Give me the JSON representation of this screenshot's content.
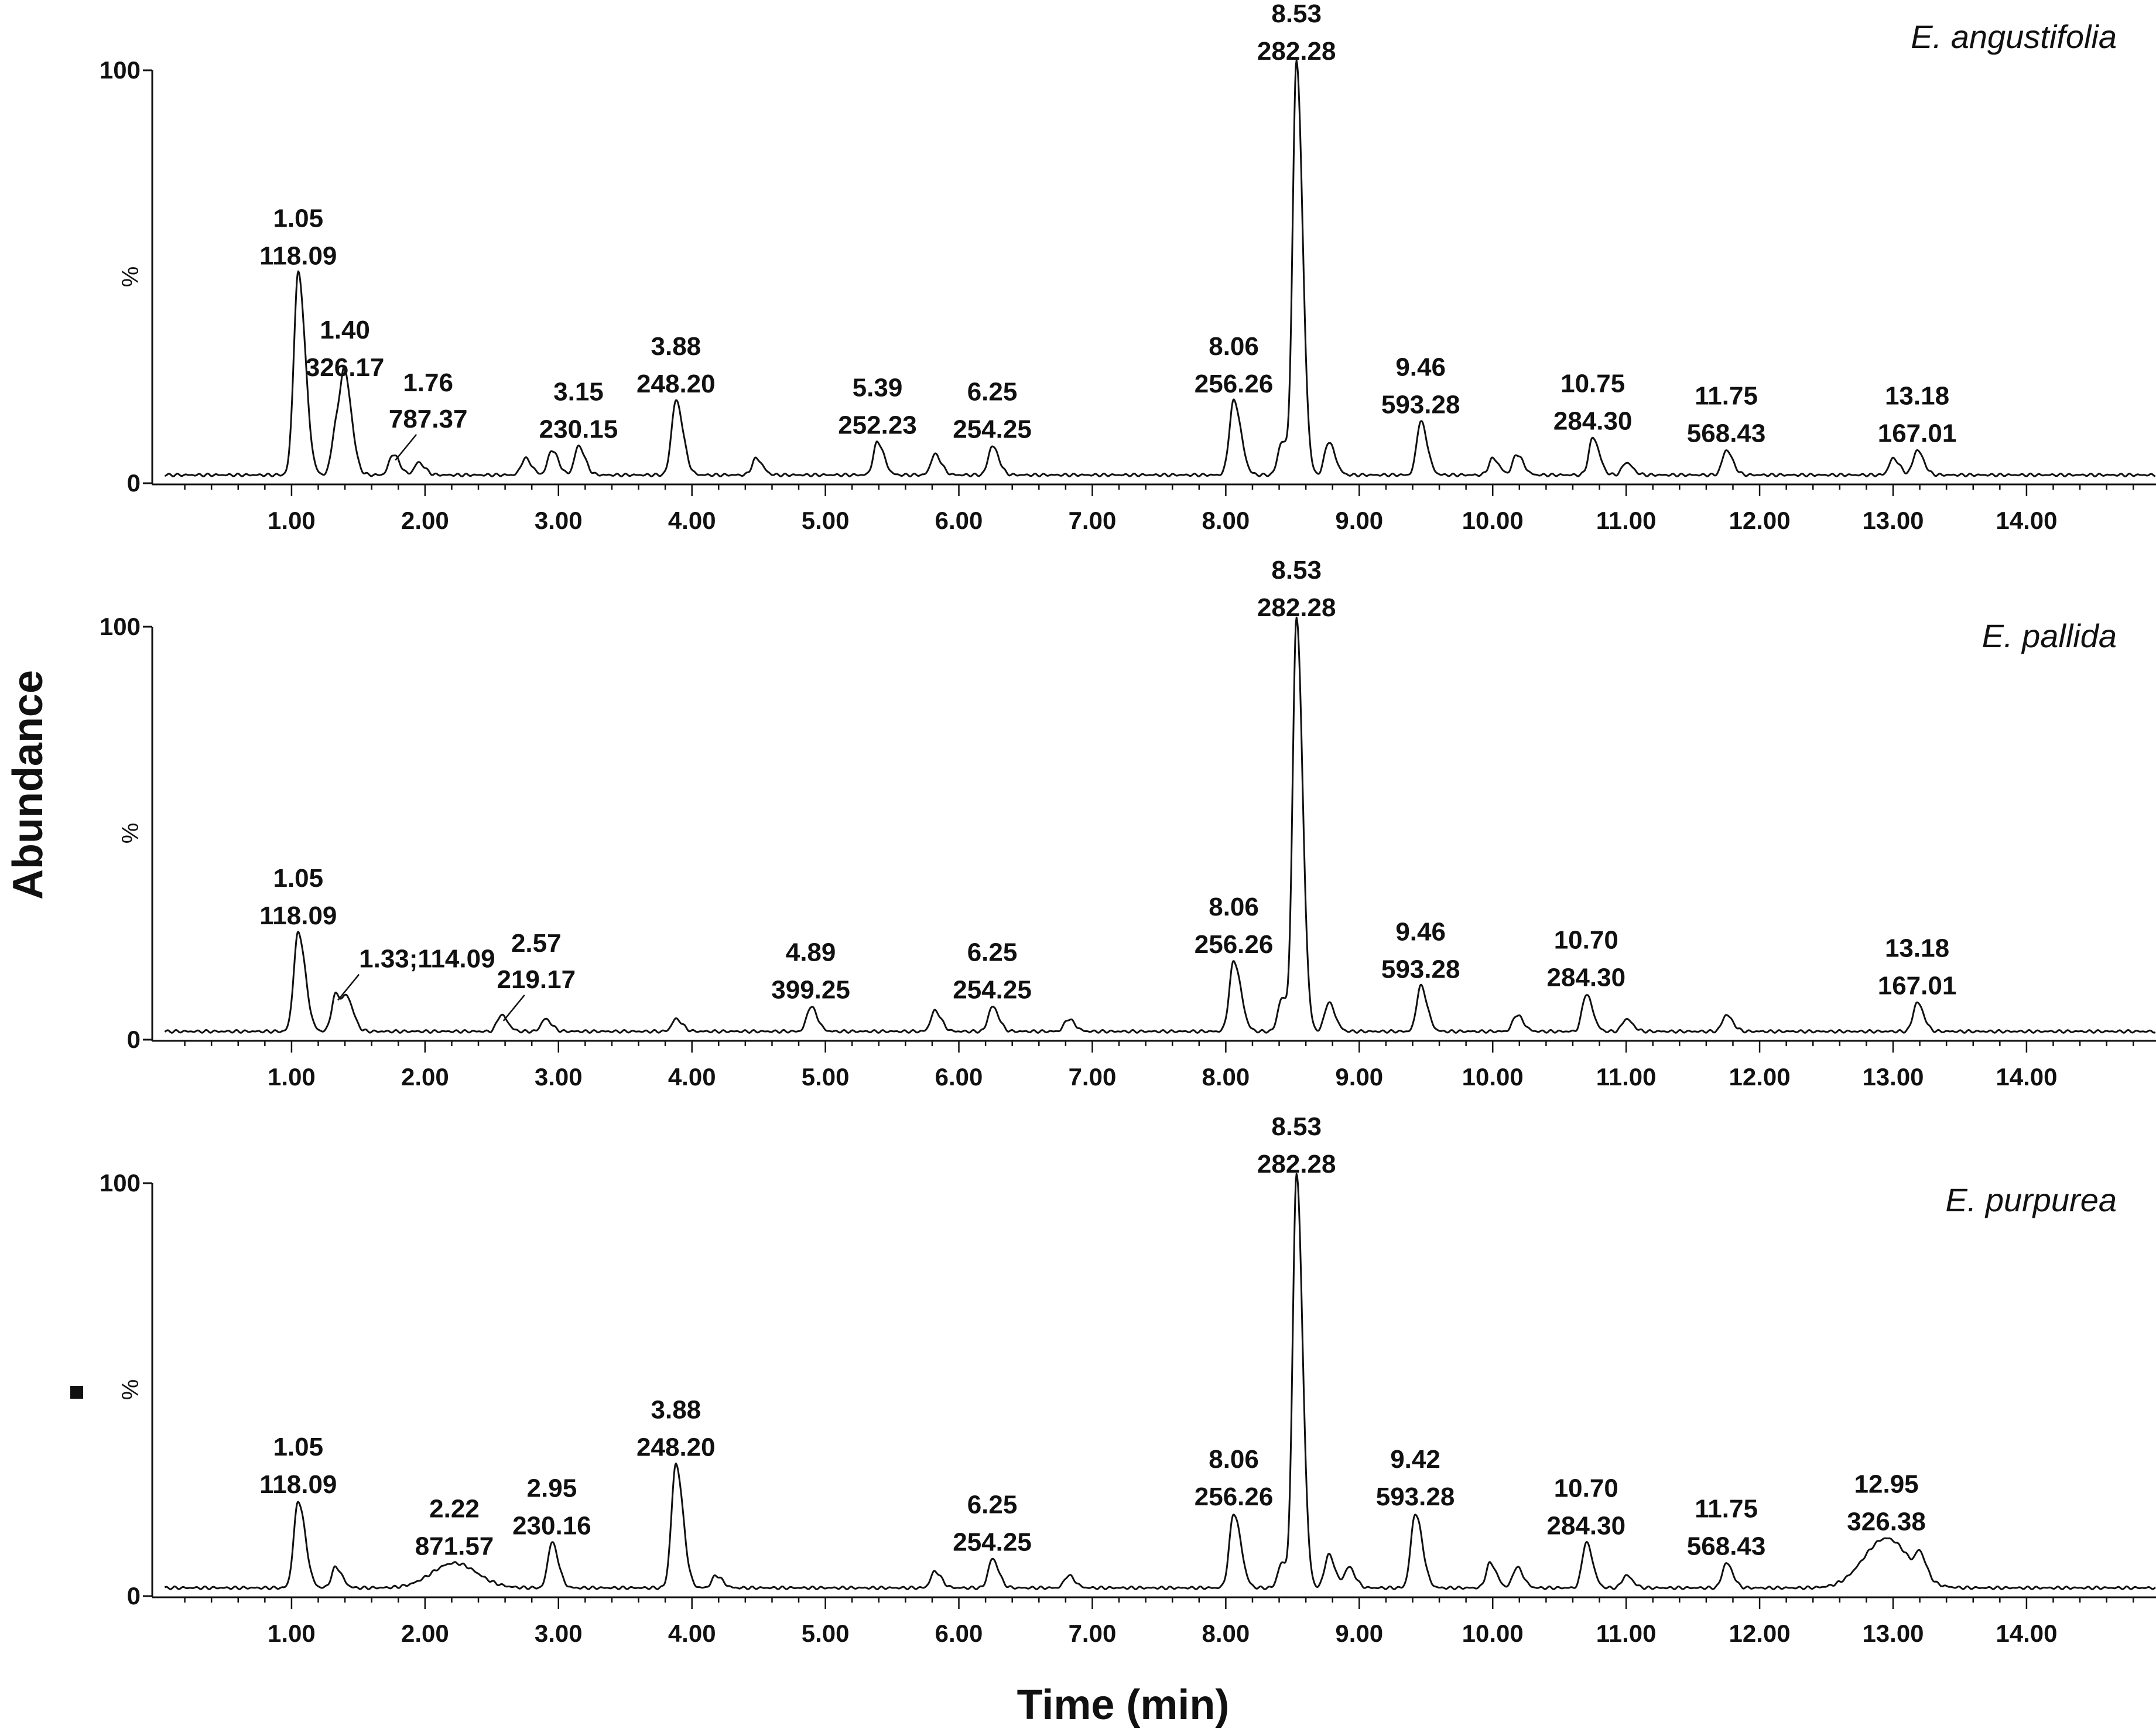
{
  "chart_data": {
    "type": "line",
    "ylabel": "Abundance",
    "xlabel": "Time (min)",
    "xlim": [
      0.0,
      15.0
    ],
    "ylim": [
      0,
      100
    ],
    "xticks": [
      "1.00",
      "2.00",
      "3.00",
      "4.00",
      "5.00",
      "6.00",
      "7.00",
      "8.00",
      "9.00",
      "10.00",
      "11.00",
      "12.00",
      "13.00",
      "14.00"
    ],
    "yticks": [
      "0",
      "100"
    ],
    "percent_label": "%",
    "baseline": 2,
    "panels": [
      {
        "title": "E. angustifolia",
        "peaks": [
          {
            "t": 1.05,
            "h": 49,
            "label": [
              "1.05",
              "118.09"
            ]
          },
          {
            "t": 1.33,
            "h": 11
          },
          {
            "t": 1.4,
            "h": 22,
            "label": [
              "1.40",
              "326.17"
            ]
          },
          {
            "t": 1.76,
            "h": 5,
            "label": [
              "1.76",
              "787.37"
            ],
            "leader": true
          },
          {
            "t": 1.95,
            "h": 3
          },
          {
            "t": 2.75,
            "h": 4
          },
          {
            "t": 2.95,
            "h": 6
          },
          {
            "t": 3.15,
            "h": 7,
            "label": [
              "3.15",
              "230.15"
            ]
          },
          {
            "t": 3.88,
            "h": 18,
            "label": [
              "3.88",
              "248.20"
            ]
          },
          {
            "t": 4.48,
            "h": 4
          },
          {
            "t": 5.39,
            "h": 8,
            "label": [
              "5.39",
              "252.23"
            ]
          },
          {
            "t": 5.82,
            "h": 5
          },
          {
            "t": 6.25,
            "h": 7,
            "label": [
              "6.25",
              "254.25"
            ]
          },
          {
            "t": 8.06,
            "h": 18,
            "label": [
              "8.06",
              "256.26"
            ]
          },
          {
            "t": 8.42,
            "h": 8
          },
          {
            "t": 8.53,
            "h": 100,
            "label": [
              "8.53",
              "282.28"
            ]
          },
          {
            "t": 8.77,
            "h": 8
          },
          {
            "t": 9.46,
            "h": 13,
            "label": [
              "9.46",
              "593.28"
            ]
          },
          {
            "t": 10.0,
            "h": 4
          },
          {
            "t": 10.18,
            "h": 5
          },
          {
            "t": 10.75,
            "h": 9,
            "label": [
              "10.75",
              "284.30"
            ]
          },
          {
            "t": 11.0,
            "h": 3
          },
          {
            "t": 11.75,
            "h": 6,
            "label": [
              "11.75",
              "568.43"
            ]
          },
          {
            "t": 13.0,
            "h": 4
          },
          {
            "t": 13.18,
            "h": 6,
            "label": [
              "13.18",
              "167.01"
            ]
          }
        ]
      },
      {
        "title": "E. pallida",
        "peaks": [
          {
            "t": 1.05,
            "h": 24,
            "label": [
              "1.05",
              "118.09"
            ]
          },
          {
            "t": 1.33,
            "h": 9,
            "label": [
              "1.33;114.09"
            ],
            "leader": true
          },
          {
            "t": 1.42,
            "h": 7
          },
          {
            "t": 2.57,
            "h": 4,
            "label": [
              "2.57",
              "219.17"
            ],
            "leader": true
          },
          {
            "t": 2.9,
            "h": 3
          },
          {
            "t": 3.88,
            "h": 3
          },
          {
            "t": 4.89,
            "h": 6,
            "label": [
              "4.89",
              "399.25"
            ]
          },
          {
            "t": 5.82,
            "h": 5
          },
          {
            "t": 6.25,
            "h": 6,
            "label": [
              "6.25",
              "254.25"
            ]
          },
          {
            "t": 6.82,
            "h": 3
          },
          {
            "t": 8.06,
            "h": 17,
            "label": [
              "8.06",
              "256.26"
            ]
          },
          {
            "t": 8.42,
            "h": 8
          },
          {
            "t": 8.53,
            "h": 100,
            "label": [
              "8.53",
              "282.28"
            ]
          },
          {
            "t": 8.77,
            "h": 7
          },
          {
            "t": 9.46,
            "h": 11,
            "label": [
              "9.46",
              "593.28"
            ]
          },
          {
            "t": 10.18,
            "h": 4
          },
          {
            "t": 10.7,
            "h": 9,
            "label": [
              "10.70",
              "284.30"
            ]
          },
          {
            "t": 11.0,
            "h": 3
          },
          {
            "t": 11.75,
            "h": 4
          },
          {
            "t": 13.18,
            "h": 7,
            "label": [
              "13.18",
              "167.01"
            ]
          }
        ]
      },
      {
        "title": "E. purpurea",
        "peaks": [
          {
            "t": 1.05,
            "h": 21,
            "label": [
              "1.05",
              "118.09"
            ]
          },
          {
            "t": 1.33,
            "h": 5
          },
          {
            "t": 2.22,
            "h": 6,
            "label": [
              "2.22",
              "871.57"
            ],
            "broad": true
          },
          {
            "t": 2.95,
            "h": 11,
            "label": [
              "2.95",
              "230.16"
            ]
          },
          {
            "t": 3.88,
            "h": 30,
            "label": [
              "3.88",
              "248.20"
            ]
          },
          {
            "t": 4.18,
            "h": 3
          },
          {
            "t": 5.82,
            "h": 4
          },
          {
            "t": 6.25,
            "h": 7,
            "label": [
              "6.25",
              "254.25"
            ]
          },
          {
            "t": 6.82,
            "h": 3
          },
          {
            "t": 8.06,
            "h": 18,
            "label": [
              "8.06",
              "256.26"
            ]
          },
          {
            "t": 8.42,
            "h": 6
          },
          {
            "t": 8.53,
            "h": 100,
            "label": [
              "8.53",
              "282.28"
            ]
          },
          {
            "t": 8.77,
            "h": 8
          },
          {
            "t": 8.92,
            "h": 5
          },
          {
            "t": 9.42,
            "h": 18,
            "label": [
              "9.42",
              "593.28"
            ]
          },
          {
            "t": 9.98,
            "h": 6
          },
          {
            "t": 10.18,
            "h": 5
          },
          {
            "t": 10.7,
            "h": 11,
            "label": [
              "10.70",
              "284.30"
            ]
          },
          {
            "t": 11.0,
            "h": 3
          },
          {
            "t": 11.75,
            "h": 6,
            "label": [
              "11.75",
              "568.43"
            ]
          },
          {
            "t": 12.95,
            "h": 12,
            "label": [
              "12.95",
              "326.38"
            ],
            "broad": true
          },
          {
            "t": 13.2,
            "h": 5
          }
        ]
      }
    ]
  }
}
